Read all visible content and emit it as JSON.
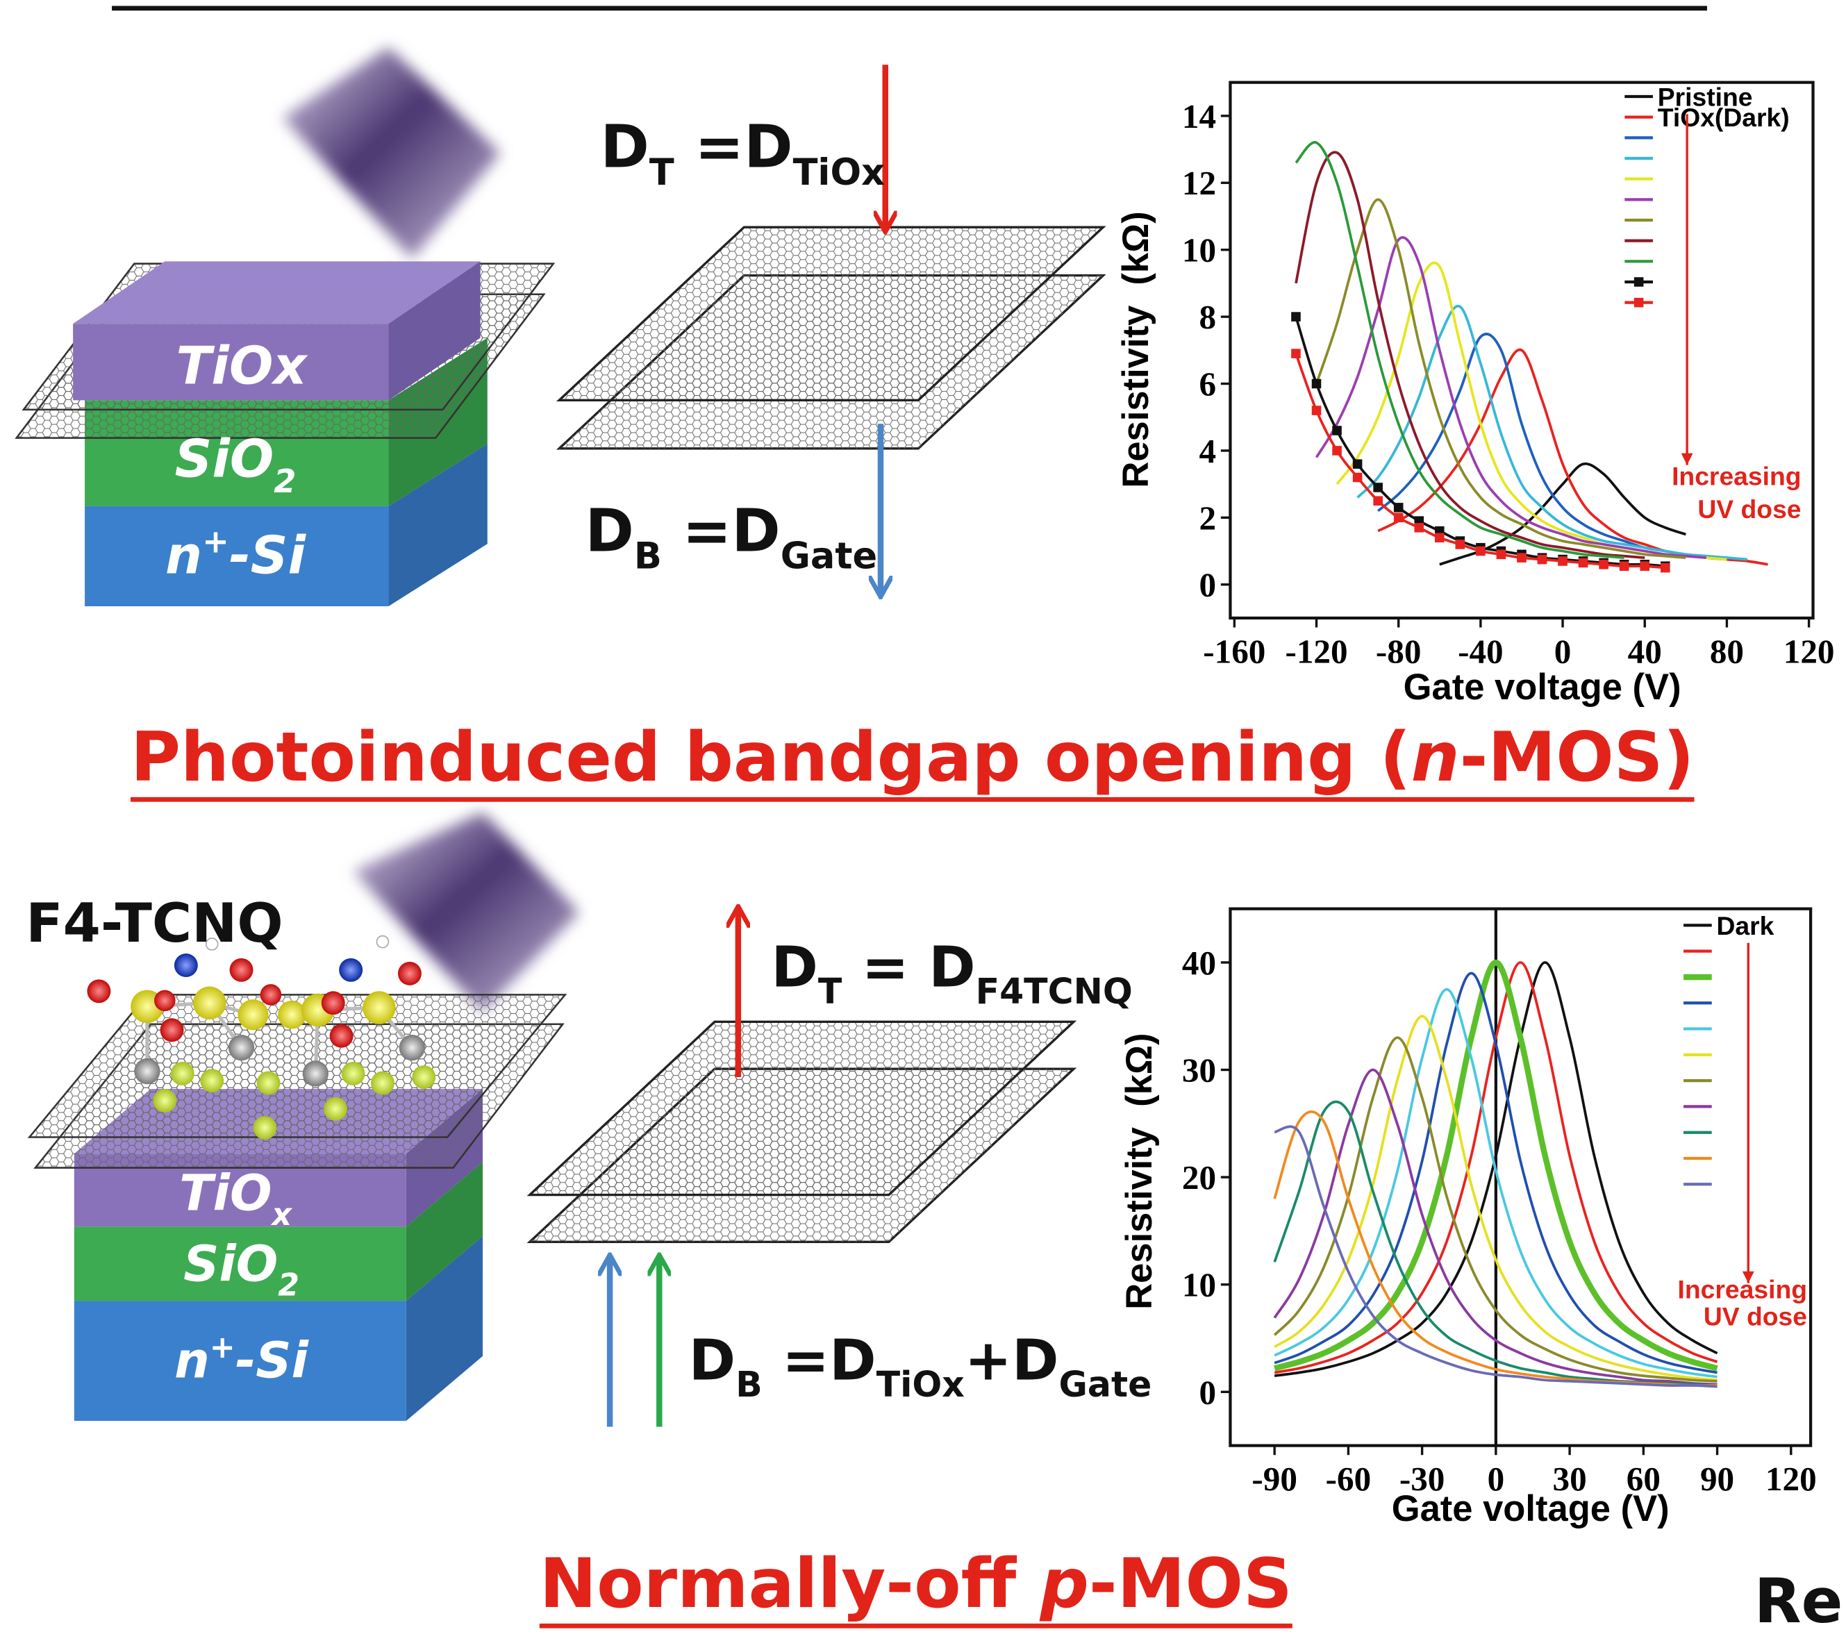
{
  "chart_data": [
    {
      "type": "line",
      "x_label": "Gate voltage (V)",
      "y_label": "Resistivity  (kΩ)",
      "xlim": [
        -162,
        122
      ],
      "xticks": [
        -160,
        -120,
        -80,
        -40,
        0,
        40,
        80,
        120
      ],
      "ylim": [
        -1,
        15
      ],
      "yticks": [
        0,
        2,
        4,
        6,
        8,
        10,
        12,
        14
      ],
      "legend": "upper right",
      "annotation": [
        "Increasing",
        "UV dose"
      ],
      "annotation_color": "#e2231a",
      "x": [
        -130,
        -120,
        -110,
        -100,
        -90,
        -80,
        -70,
        -60,
        -50,
        -40,
        -30,
        -20,
        -10,
        0,
        10,
        20,
        30,
        40,
        50,
        60,
        70,
        80,
        90,
        100
      ],
      "series": [
        {
          "name": "Pristine",
          "color": "#111111",
          "values": [
            null,
            null,
            null,
            null,
            null,
            null,
            null,
            0.6,
            0.8,
            1.0,
            1.3,
            1.7,
            2.3,
            3.0,
            3.6,
            3.3,
            2.6,
            2.0,
            1.7,
            1.5,
            null,
            null,
            null,
            null
          ]
        },
        {
          "name": "TiOx(Dark)",
          "color": "#e8231f",
          "values": [
            null,
            null,
            null,
            null,
            1.6,
            1.9,
            2.3,
            2.9,
            3.7,
            4.8,
            6.2,
            7.0,
            5.5,
            3.6,
            2.4,
            1.8,
            1.4,
            1.2,
            1.0,
            0.9,
            0.8,
            0.75,
            0.7,
            0.6
          ]
        },
        {
          "color": "#1f5fbf",
          "values": [
            null,
            null,
            null,
            null,
            2.2,
            2.7,
            3.4,
            4.4,
            5.8,
            7.4,
            7.0,
            4.8,
            3.2,
            2.3,
            1.8,
            1.5,
            1.3,
            1.1,
            1.0,
            0.9,
            0.85,
            0.8,
            0.75,
            null
          ]
        },
        {
          "color": "#36b8d8",
          "values": [
            null,
            null,
            null,
            2.6,
            3.2,
            4.2,
            5.6,
            7.4,
            8.3,
            6.6,
            4.5,
            3.0,
            2.3,
            1.8,
            1.5,
            1.3,
            1.2,
            1.1,
            1.0,
            0.9,
            0.85,
            0.8,
            0.75,
            null
          ]
        },
        {
          "color": "#e6e620",
          "values": [
            null,
            null,
            3.0,
            3.8,
            5.0,
            6.8,
            9.0,
            9.5,
            7.2,
            4.8,
            3.2,
            2.4,
            1.9,
            1.6,
            1.4,
            1.2,
            1.1,
            1.0,
            0.9,
            0.85,
            0.8,
            0.75,
            null,
            null
          ]
        },
        {
          "color": "#9a3fb0",
          "values": [
            null,
            3.8,
            4.8,
            6.2,
            8.2,
            10.3,
            9.6,
            7.0,
            4.8,
            3.3,
            2.5,
            2.0,
            1.7,
            1.5,
            1.3,
            1.2,
            1.1,
            1.0,
            0.9,
            0.85,
            0.8,
            null,
            null,
            null
          ]
        },
        {
          "color": "#8b8b2a",
          "values": [
            null,
            6.0,
            7.8,
            10.0,
            11.5,
            10.0,
            7.2,
            5.0,
            3.5,
            2.6,
            2.1,
            1.8,
            1.5,
            1.3,
            1.2,
            1.1,
            1.0,
            0.9,
            0.85,
            0.8,
            null,
            null,
            null,
            null
          ]
        },
        {
          "color": "#8b1a2a",
          "values": [
            9.0,
            12.0,
            12.9,
            11.5,
            8.5,
            6.0,
            4.2,
            3.0,
            2.3,
            1.9,
            1.6,
            1.4,
            1.2,
            1.1,
            1.0,
            0.9,
            0.85,
            0.8,
            null,
            null,
            null,
            null,
            null,
            null
          ]
        },
        {
          "color": "#2a9a3a",
          "values": [
            12.6,
            13.2,
            12.0,
            9.5,
            6.8,
            4.8,
            3.4,
            2.6,
            2.1,
            1.7,
            1.5,
            1.3,
            1.1,
            1.0,
            0.9,
            0.85,
            0.8,
            null,
            null,
            null,
            null,
            null,
            null,
            null
          ]
        },
        {
          "color": "#111111",
          "marker": "square",
          "values": [
            8.0,
            6.0,
            4.6,
            3.6,
            2.9,
            2.3,
            1.9,
            1.6,
            1.3,
            1.1,
            1.0,
            0.9,
            0.8,
            0.75,
            0.7,
            0.65,
            0.6,
            0.6,
            0.55,
            null,
            null,
            null,
            null,
            null
          ]
        },
        {
          "color": "#e8231f",
          "marker": "square",
          "values": [
            6.9,
            5.2,
            4.0,
            3.2,
            2.5,
            2.0,
            1.7,
            1.4,
            1.2,
            1.0,
            0.9,
            0.8,
            0.75,
            0.7,
            0.65,
            0.6,
            0.55,
            0.55,
            0.5,
            null,
            null,
            null,
            null,
            null
          ]
        }
      ]
    },
    {
      "type": "line",
      "x_label": "Gate voltage (V)",
      "y_label": "Resistivity  (kΩ)",
      "xlim": [
        -108,
        128
      ],
      "xticks": [
        -90,
        -60,
        -30,
        0,
        30,
        60,
        90,
        120
      ],
      "ylim": [
        -5,
        45
      ],
      "yticks": [
        0,
        10,
        20,
        30,
        40
      ],
      "vline": 0,
      "legend": "upper right",
      "annotation": [
        "Increasing",
        "UV dose"
      ],
      "annotation_color": "#e2231a",
      "x": [
        -90,
        -80,
        -70,
        -60,
        -50,
        -40,
        -30,
        -20,
        -10,
        0,
        10,
        20,
        30,
        40,
        50,
        60,
        70,
        80,
        90
      ],
      "series": [
        {
          "name": "Dark",
          "color": "#111111",
          "values": [
            1.5,
            1.8,
            2.2,
            2.8,
            3.6,
            4.8,
            6.4,
            9.2,
            14,
            22,
            33,
            40,
            33,
            22,
            14,
            9.2,
            6.4,
            4.8,
            3.6
          ]
        },
        {
          "color": "#e8231f",
          "values": [
            1.8,
            2.2,
            2.8,
            3.6,
            4.8,
            6.4,
            9.2,
            14,
            22,
            33,
            40,
            33,
            22,
            14,
            9.2,
            6.4,
            4.8,
            3.6,
            2.8
          ]
        },
        {
          "color": "#5cc02a",
          "width": 5,
          "values": [
            2.2,
            2.8,
            3.6,
            4.8,
            6.4,
            9.2,
            14,
            22,
            33,
            40,
            33,
            22,
            14,
            9.2,
            6.4,
            4.8,
            3.6,
            2.8,
            2.2
          ]
        },
        {
          "color": "#1f4fb0",
          "values": [
            2.7,
            3.5,
            4.7,
            6.2,
            9.0,
            13.7,
            21.5,
            32.4,
            39,
            32.4,
            21.5,
            13.7,
            9.0,
            6.2,
            4.7,
            3.5,
            2.7,
            2.2,
            1.8
          ]
        },
        {
          "color": "#4ac8e0",
          "values": [
            3.4,
            4.5,
            6.0,
            8.6,
            13.1,
            20.6,
            31.1,
            37.5,
            31.1,
            20.6,
            13.1,
            8.6,
            6.0,
            4.5,
            3.4,
            2.6,
            2.1,
            1.7,
            1.4
          ]
        },
        {
          "color": "#e6e020",
          "values": [
            4.2,
            5.6,
            8.1,
            12.3,
            19.3,
            29.1,
            35,
            29.1,
            19.3,
            12.3,
            8.1,
            5.6,
            4.2,
            3.2,
            2.5,
            2.0,
            1.6,
            1.3,
            1.1
          ]
        },
        {
          "color": "#8a8a2a",
          "values": [
            5.3,
            7.6,
            11.6,
            18.2,
            27.4,
            33,
            27.4,
            18.2,
            11.6,
            7.6,
            5.3,
            4.0,
            3.0,
            2.3,
            1.8,
            1.5,
            1.3,
            1.1,
            1.0
          ]
        },
        {
          "color": "#8a3aa0",
          "values": [
            6.9,
            10.5,
            16.5,
            24.9,
            30,
            24.9,
            16.5,
            10.5,
            6.9,
            4.8,
            3.6,
            2.7,
            2.1,
            1.7,
            1.4,
            1.1,
            1.0,
            0.8,
            0.7
          ]
        },
        {
          "color": "#1a8a6a",
          "values": [
            12.1,
            18.7,
            26.1,
            26.1,
            18.7,
            12.1,
            7.7,
            5.2,
            3.9,
            2.9,
            2.2,
            1.8,
            1.4,
            1.2,
            1.0,
            0.9,
            0.8,
            0.7,
            0.6
          ]
        },
        {
          "color": "#f08a20",
          "values": [
            18.0,
            25.2,
            25.2,
            18.0,
            11.7,
            7.4,
            5.0,
            3.7,
            2.8,
            2.1,
            1.7,
            1.4,
            1.2,
            1.0,
            0.9,
            0.8,
            0.7,
            0.6,
            0.6
          ]
        },
        {
          "color": "#6a6ab8",
          "values": [
            24.2,
            24.2,
            17.3,
            11.2,
            7.1,
            4.8,
            3.6,
            2.7,
            2.0,
            1.6,
            1.4,
            1.1,
            1.0,
            0.9,
            0.8,
            0.7,
            0.6,
            0.6,
            0.5
          ]
        }
      ]
    }
  ],
  "devices": [
    {
      "layers": [
        [
          {
            "text": "TiOx"
          }
        ],
        [
          {
            "text": "SiO"
          },
          {
            "sub": "2"
          }
        ],
        [
          {
            "text": "n"
          },
          {
            "sup": "+"
          },
          {
            "text": "-Si"
          }
        ]
      ]
    },
    {
      "molecule": "F4-TCNQ",
      "layers": [
        [
          {
            "text": "TiO"
          },
          {
            "sub": "x"
          }
        ],
        [
          {
            "text": "SiO"
          },
          {
            "sub": "2"
          }
        ],
        [
          {
            "text": "n"
          },
          {
            "sup": "+"
          },
          {
            "text": "-Si"
          }
        ]
      ]
    }
  ],
  "schemes": [
    {
      "top": [
        {
          "text": "D"
        },
        {
          "sub": "T"
        },
        {
          "text": " =D"
        },
        {
          "sub": "TiOx"
        }
      ],
      "bottom": [
        {
          "text": "D"
        },
        {
          "sub": "B"
        },
        {
          "text": " =D"
        },
        {
          "sub": "Gate"
        }
      ]
    },
    {
      "top": [
        {
          "text": "D"
        },
        {
          "sub": "T"
        },
        {
          "text": " = D"
        },
        {
          "sub": "F4TCNQ"
        }
      ],
      "bottom": [
        {
          "text": "D"
        },
        {
          "sub": "B"
        },
        {
          "text": " =D"
        },
        {
          "sub": "TiOx"
        },
        {
          "text": "+D"
        },
        {
          "sub": "Gate"
        }
      ]
    }
  ],
  "headings": [
    [
      {
        "text": "Photoinduced bandgap opening ("
      },
      {
        "italic": "n"
      },
      {
        "text": "-MOS)"
      }
    ],
    [
      {
        "text": "Normally-off "
      },
      {
        "italic": "p"
      },
      {
        "text": "-MOS"
      }
    ]
  ],
  "corner_heading": "Re"
}
